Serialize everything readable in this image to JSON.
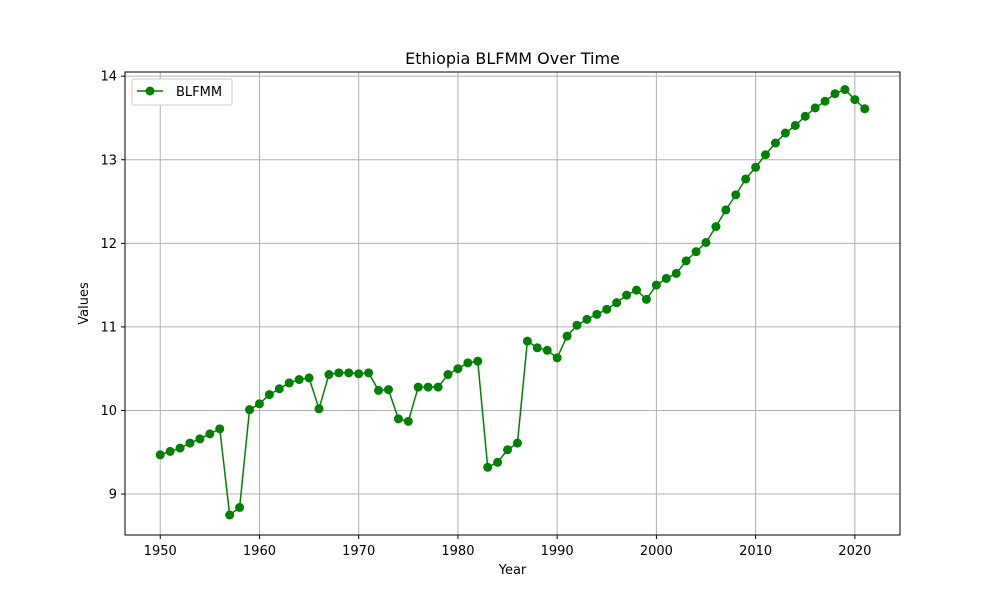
{
  "chart_data": {
    "type": "line",
    "title": "Ethiopia BLFMM Over Time",
    "xlabel": "Year",
    "ylabel": "Values",
    "xlim": [
      1946.45,
      2024.55
    ],
    "ylim": [
      8.51,
      14.05
    ],
    "x_ticks": [
      1950,
      1960,
      1970,
      1980,
      1990,
      2000,
      2010,
      2020
    ],
    "y_ticks": [
      9,
      10,
      11,
      12,
      13,
      14
    ],
    "grid": true,
    "legend_position": "top-left",
    "series": [
      {
        "name": "BLFMM",
        "color": "#008000",
        "marker": "circle",
        "x": [
          1950,
          1951,
          1952,
          1953,
          1954,
          1955,
          1956,
          1957,
          1958,
          1959,
          1960,
          1961,
          1962,
          1963,
          1964,
          1965,
          1966,
          1967,
          1968,
          1969,
          1970,
          1971,
          1972,
          1973,
          1974,
          1975,
          1976,
          1977,
          1978,
          1979,
          1980,
          1981,
          1982,
          1983,
          1984,
          1985,
          1986,
          1987,
          1988,
          1989,
          1990,
          1991,
          1992,
          1993,
          1994,
          1995,
          1996,
          1997,
          1998,
          1999,
          2000,
          2001,
          2002,
          2003,
          2004,
          2005,
          2006,
          2007,
          2008,
          2009,
          2010,
          2011,
          2012,
          2013,
          2014,
          2015,
          2016,
          2017,
          2018,
          2019,
          2020,
          2021
        ],
        "y": [
          9.47,
          9.51,
          9.55,
          9.61,
          9.66,
          9.72,
          9.78,
          8.75,
          8.84,
          10.01,
          10.08,
          10.19,
          10.26,
          10.33,
          10.37,
          10.39,
          10.02,
          10.43,
          10.45,
          10.45,
          10.44,
          10.45,
          10.24,
          10.25,
          9.9,
          9.87,
          10.28,
          10.28,
          10.28,
          10.43,
          10.5,
          10.57,
          10.59,
          9.32,
          9.38,
          9.53,
          9.61,
          10.83,
          10.75,
          10.72,
          10.63,
          10.89,
          11.02,
          11.09,
          11.15,
          11.21,
          11.29,
          11.38,
          11.44,
          11.33,
          11.5,
          11.58,
          11.64,
          11.79,
          11.9,
          12.01,
          12.2,
          12.4,
          12.58,
          12.77,
          12.91,
          13.06,
          13.2,
          13.32,
          13.41,
          13.52,
          13.62,
          13.7,
          13.79,
          13.84,
          13.72,
          13.61
        ]
      }
    ]
  }
}
